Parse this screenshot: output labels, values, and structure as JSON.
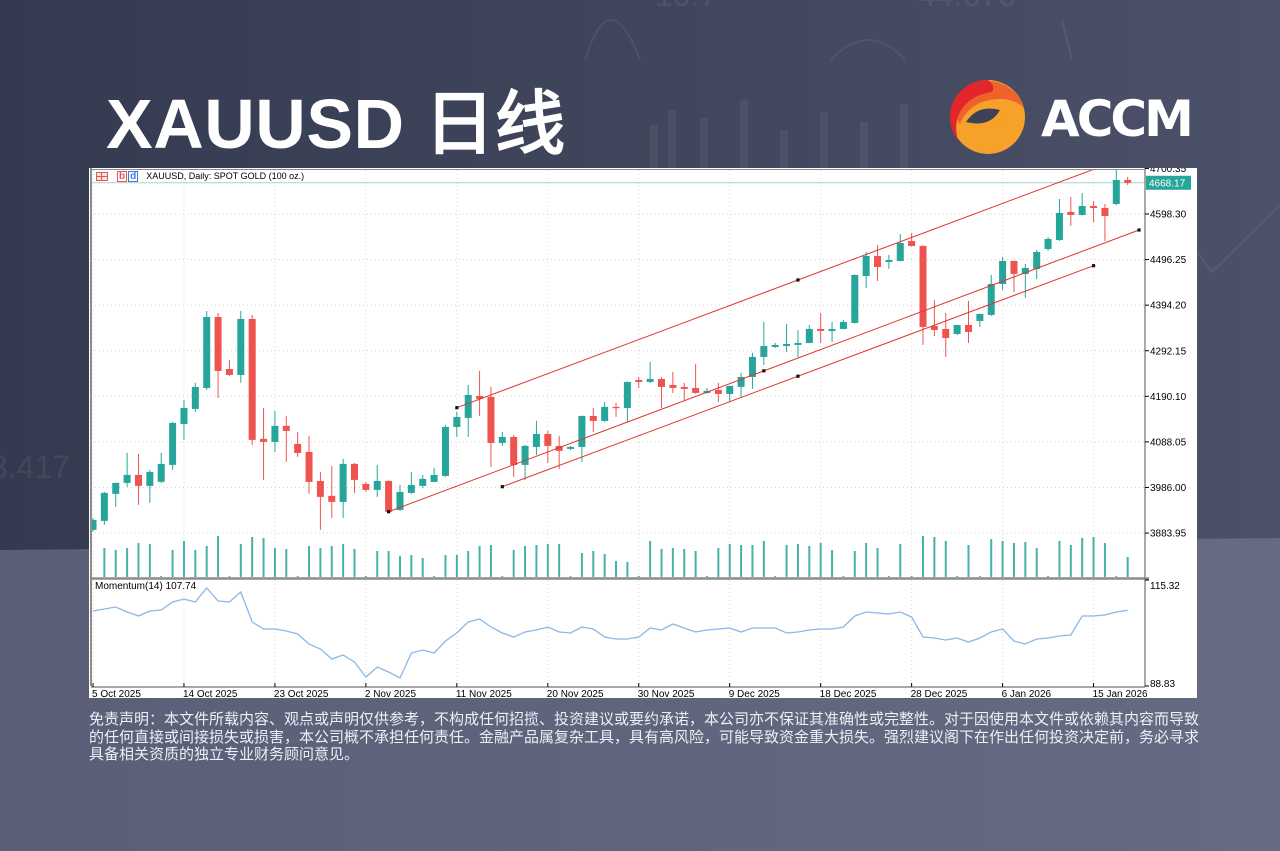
{
  "page": {
    "title": "XAUUSD 日线"
  },
  "brand": {
    "name": "ACCM",
    "logo_icon": "accm-swirl-logo"
  },
  "background": {
    "decor_texts": [
      "10.7",
      "44.676",
      "3.417"
    ]
  },
  "chart": {
    "header": {
      "symbol_label": "XAUUSD, Daily:  SPOT GOLD (100 oz.)",
      "icons": [
        "trade-panel-icon",
        "one-click-trading-icon"
      ],
      "oneclick_glyph": {
        "b": "b",
        "d": "d"
      }
    },
    "momentum_label": "Momentum(14) 107.74",
    "current_price_label": "4668.17"
  },
  "disclaimer": {
    "lines": [
      "免责声明：本文件所载内容、观点或声明仅供参考，不构成任何招揽、投资建议或要约承诺，本公司亦不保证其准确性或完整性。对于因使用本文件或依赖其内容而导致",
      "的任何直接或间接损失或损害，本公司概不承担任何责任。金融产品属复杂工具，具有高风险，可能导致资金重大损失。强烈建议阁下在作出任何投资决定前，务必寻求",
      "具备相关资质的独立专业财务顾问意见。"
    ]
  },
  "colors": {
    "bull": "#26a69a",
    "bear": "#ef5350",
    "trend_line": "#e0352f",
    "anchor": "#111111",
    "momentum": "#8ab8e6",
    "volume": "#46b1a4",
    "bid_line": "#a8d3c9",
    "grid": "#d6d6d6",
    "axis": "#8c8c8c",
    "price_tag_bg": "#26a69a",
    "logo_red": "#e3262b",
    "logo_orange": "#f0622b",
    "logo_yellow": "#f6a12a"
  },
  "chart_data": {
    "type": "candlestick",
    "title": "XAUUSD, Daily:  SPOT GOLD (100 oz.)",
    "symbol": "XAUUSD",
    "timeframe": "Daily",
    "xlabel": "",
    "ylabel": "",
    "grid": true,
    "ylim": [
      3785.5,
      4696.8
    ],
    "price_ticks": [
      4700.35,
      4598.3,
      4496.25,
      4394.2,
      4292.15,
      4190.1,
      4088.05,
      3986.0,
      3883.95
    ],
    "current_price": 4668.17,
    "x_ticks": [
      {
        "index": 0,
        "label": "5 Oct 2025"
      },
      {
        "index": 8,
        "label": "14 Oct 2025"
      },
      {
        "index": 16,
        "label": "23 Oct 2025"
      },
      {
        "index": 24,
        "label": "2 Nov 2025"
      },
      {
        "index": 32,
        "label": "11 Nov 2025"
      },
      {
        "index": 40,
        "label": "20 Nov 2025"
      },
      {
        "index": 48,
        "label": "30 Nov 2025"
      },
      {
        "index": 56,
        "label": "9 Dec 2025"
      },
      {
        "index": 64,
        "label": "18 Dec 2025"
      },
      {
        "index": 72,
        "label": "28 Dec 2025"
      },
      {
        "index": 80,
        "label": "6 Jan 2026"
      },
      {
        "index": 88,
        "label": "15 Jan 2026"
      }
    ],
    "ohlc_format": [
      "open",
      "high",
      "low",
      "close"
    ],
    "ohlc": [
      [
        3891.0,
        3917.8,
        3886.5,
        3913.4
      ],
      [
        3911.1,
        3976.0,
        3902.2,
        3973.8
      ],
      [
        3971.6,
        3997.0,
        3942.5,
        3996.2
      ],
      [
        3996.2,
        4063.3,
        3987.2,
        4014.1
      ],
      [
        4014.1,
        4061.1,
        3946.9,
        3989.5
      ],
      [
        3989.5,
        4025.3,
        3951.4,
        4020.8
      ],
      [
        3998.6,
        4063.3,
        3996.2,
        4038.7
      ],
      [
        4036.5,
        4132.7,
        4025.3,
        4130.5
      ],
      [
        4128.2,
        4181.9,
        4092.4,
        4164.0
      ],
      [
        4161.8,
        4220.0,
        4155.1,
        4211.1
      ],
      [
        4208.8,
        4381.2,
        4204.3,
        4367.7
      ],
      [
        4367.7,
        4376.7,
        4186.4,
        4246.9
      ],
      [
        4251.3,
        4271.5,
        4235.7,
        4237.9
      ],
      [
        4237.9,
        4381.2,
        4220.0,
        4363.3
      ],
      [
        4363.3,
        4372.2,
        4081.2,
        4092.4
      ],
      [
        4094.7,
        4164.0,
        4002.9,
        4087.9
      ],
      [
        4087.9,
        4157.3,
        4065.6,
        4123.8
      ],
      [
        4123.8,
        4146.1,
        4043.2,
        4112.6
      ],
      [
        4083.5,
        4110.3,
        4054.4,
        4063.3
      ],
      [
        4065.6,
        4101.4,
        3971.6,
        3998.4
      ],
      [
        4000.6,
        4020.8,
        3891.0,
        3964.8
      ],
      [
        3967.1,
        4034.2,
        3917.8,
        3953.6
      ],
      [
        3953.6,
        4049.9,
        3917.8,
        4038.7
      ],
      [
        4038.7,
        4040.9,
        3973.8,
        4002.9
      ],
      [
        3993.9,
        3998.4,
        3976.0,
        3980.5
      ],
      [
        3980.5,
        4036.5,
        3964.8,
        4000.6
      ],
      [
        4000.6,
        4001.5,
        3929.0,
        3931.3
      ],
      [
        3935.7,
        3991.7,
        3933.5,
        3976.0
      ],
      [
        3973.8,
        4020.8,
        3971.6,
        3991.7
      ],
      [
        3989.5,
        4014.1,
        3985.0,
        4005.1
      ],
      [
        3998.4,
        4029.8,
        3997.5,
        4014.1
      ],
      [
        4011.8,
        4126.0,
        4009.6,
        4121.5
      ],
      [
        4121.5,
        4155.1,
        4099.1,
        4143.9
      ],
      [
        4141.7,
        4215.5,
        4099.1,
        4193.2
      ],
      [
        4190.9,
        4246.9,
        4146.1,
        4184.2
      ],
      [
        4188.7,
        4211.1,
        4032.0,
        4085.7
      ],
      [
        4085.7,
        4110.3,
        4079.0,
        4099.1
      ],
      [
        4099.1,
        4103.6,
        4009.6,
        4036.5
      ],
      [
        4036.5,
        4081.2,
        4002.9,
        4079.0
      ],
      [
        4076.7,
        4135.0,
        4058.8,
        4105.8
      ],
      [
        4105.8,
        4112.6,
        4040.9,
        4079.0
      ],
      [
        4079.0,
        4101.4,
        4027.5,
        4067.8
      ],
      [
        4072.3,
        4079.0,
        4070.0,
        4076.7
      ],
      [
        4076.7,
        4147.0,
        4043.2,
        4146.1
      ],
      [
        4146.1,
        4164.0,
        4110.3,
        4134.9
      ],
      [
        4134.9,
        4177.5,
        4132.7,
        4166.3
      ],
      [
        4166.3,
        4175.2,
        4143.9,
        4164.0
      ],
      [
        4164.0,
        4223.0,
        4132.7,
        4222.2
      ],
      [
        4226.7,
        4233.4,
        4208.8,
        4222.2
      ],
      [
        4222.2,
        4267.0,
        4220.0,
        4228.9
      ],
      [
        4228.9,
        4233.4,
        4164.0,
        4211.1
      ],
      [
        4215.5,
        4244.6,
        4197.6,
        4208.8
      ],
      [
        4211.1,
        4220.0,
        4181.9,
        4206.6
      ],
      [
        4208.8,
        4262.5,
        4196.0,
        4197.6
      ],
      [
        4197.6,
        4208.8,
        4196.0,
        4202.1
      ],
      [
        4204.3,
        4220.0,
        4177.5,
        4195.4
      ],
      [
        4195.4,
        4214.0,
        4177.5,
        4213.3
      ],
      [
        4211.1,
        4242.4,
        4186.4,
        4233.4
      ],
      [
        4233.4,
        4287.2,
        4206.6,
        4278.2
      ],
      [
        4278.2,
        4356.6,
        4260.3,
        4302.8
      ],
      [
        4300.6,
        4309.5,
        4298.0,
        4305.1
      ],
      [
        4302.8,
        4352.1,
        4289.4,
        4307.3
      ],
      [
        4305.1,
        4338.6,
        4278.2,
        4309.5
      ],
      [
        4309.5,
        4349.8,
        4309.0,
        4340.9
      ],
      [
        4340.9,
        4376.7,
        4309.5,
        4336.4
      ],
      [
        4336.4,
        4356.6,
        4311.8,
        4340.9
      ],
      [
        4340.9,
        4361.0,
        4340.0,
        4356.6
      ],
      [
        4354.3,
        4463.0,
        4353.0,
        4461.8
      ],
      [
        4459.5,
        4513.2,
        4432.7,
        4504.3
      ],
      [
        4504.3,
        4528.9,
        4448.3,
        4479.7
      ],
      [
        4490.9,
        4506.5,
        4475.2,
        4495.3
      ],
      [
        4493.1,
        4553.5,
        4492.0,
        4533.4
      ],
      [
        4537.9,
        4555.8,
        4526.0,
        4526.7
      ],
      [
        4526.7,
        4528.9,
        4305.1,
        4345.4
      ],
      [
        4347.6,
        4405.8,
        4325.2,
        4338.6
      ],
      [
        4340.9,
        4376.7,
        4278.2,
        4320.7
      ],
      [
        4329.7,
        4350.0,
        4327.0,
        4349.8
      ],
      [
        4349.8,
        4403.6,
        4309.5,
        4334.2
      ],
      [
        4358.8,
        4375.0,
        4345.4,
        4374.5
      ],
      [
        4372.2,
        4461.8,
        4370.0,
        4441.6
      ],
      [
        4441.6,
        4502.1,
        4428.2,
        4493.1
      ],
      [
        4493.1,
        4494.0,
        4423.7,
        4464.0
      ],
      [
        4464.0,
        4486.4,
        4410.3,
        4477.4
      ],
      [
        4475.2,
        4517.7,
        4452.8,
        4513.2
      ],
      [
        4519.9,
        4546.8,
        4515.5,
        4542.3
      ],
      [
        4540.1,
        4631.9,
        4537.9,
        4600.5
      ],
      [
        4602.8,
        4636.4,
        4571.4,
        4596.1
      ],
      [
        4596.1,
        4645.3,
        4595.0,
        4616.2
      ],
      [
        4616.2,
        4627.4,
        4580.4,
        4611.7
      ],
      [
        4611.7,
        4620.7,
        4537.9,
        4593.8
      ],
      [
        4620.7,
        4696.8,
        4618.4,
        4674.4
      ],
      [
        4674.4,
        4681.1,
        4663.2,
        4668.17
      ]
    ],
    "volume": [
      0,
      29,
      27,
      29,
      34,
      33,
      1,
      27,
      36,
      27,
      31,
      41,
      1,
      33,
      40,
      39,
      29,
      28,
      1,
      31,
      29,
      31,
      33,
      28,
      1,
      26,
      26,
      21,
      22,
      19,
      1,
      22,
      22,
      26,
      31,
      32,
      1,
      27,
      31,
      32,
      33,
      33,
      1,
      24,
      26,
      23,
      16,
      15,
      1,
      36,
      28,
      29,
      28,
      26,
      1,
      29,
      33,
      32,
      32,
      36,
      1,
      32,
      33,
      31,
      34,
      27,
      1,
      26,
      34,
      29,
      1,
      33,
      1,
      41,
      40,
      36,
      1,
      32,
      1,
      38,
      36,
      34,
      35,
      29,
      1,
      36,
      32,
      39,
      40,
      34,
      1,
      20
    ],
    "momentum": {
      "name": "Momentum(14)",
      "period": 14,
      "last": 107.74,
      "ylim": [
        88.83,
        115.32
      ],
      "ticks": [
        115.32,
        88.83
      ],
      "values": [
        107.57,
        108.07,
        108.57,
        107.32,
        106.32,
        107.57,
        107.82,
        109.82,
        110.57,
        109.82,
        113.32,
        110.07,
        109.82,
        112.32,
        104.82,
        103.07,
        103.07,
        102.57,
        101.82,
        99.32,
        98.07,
        95.57,
        96.57,
        94.82,
        91.07,
        93.57,
        92.32,
        90.82,
        97.07,
        97.82,
        97.07,
        100.07,
        102.07,
        104.82,
        105.57,
        103.57,
        102.07,
        101.07,
        102.32,
        102.82,
        103.57,
        102.32,
        102.07,
        103.57,
        103.07,
        101.07,
        100.57,
        100.57,
        101.07,
        103.32,
        102.82,
        104.32,
        103.32,
        102.32,
        102.82,
        103.07,
        103.32,
        102.32,
        103.32,
        103.32,
        103.32,
        102.07,
        102.32,
        102.82,
        103.07,
        103.07,
        103.57,
        106.32,
        107.32,
        107.07,
        106.82,
        107.32,
        106.07,
        101.07,
        100.82,
        100.32,
        100.82,
        99.82,
        100.82,
        102.32,
        103.07,
        100.07,
        99.32,
        100.57,
        100.82,
        101.32,
        101.57,
        106.32,
        106.32,
        106.57,
        107.32,
        107.74
      ]
    },
    "trend_lines": [
      {
        "name": "channel-upper",
        "points": [
          [
            32,
            4164.6
          ],
          [
            62,
            4450.5
          ]
        ],
        "ray": true,
        "anchors": [
          32,
          62
        ]
      },
      {
        "name": "channel-middle",
        "points": [
          [
            26,
            3931.7
          ],
          [
            92,
            4562.5
          ]
        ],
        "ray": false,
        "anchors": [
          26,
          59,
          92
        ]
      },
      {
        "name": "channel-lower",
        "points": [
          [
            36,
            3987.7
          ],
          [
            88,
            4482.5
          ]
        ],
        "ray": false,
        "anchors": [
          36,
          62,
          88
        ]
      }
    ]
  }
}
